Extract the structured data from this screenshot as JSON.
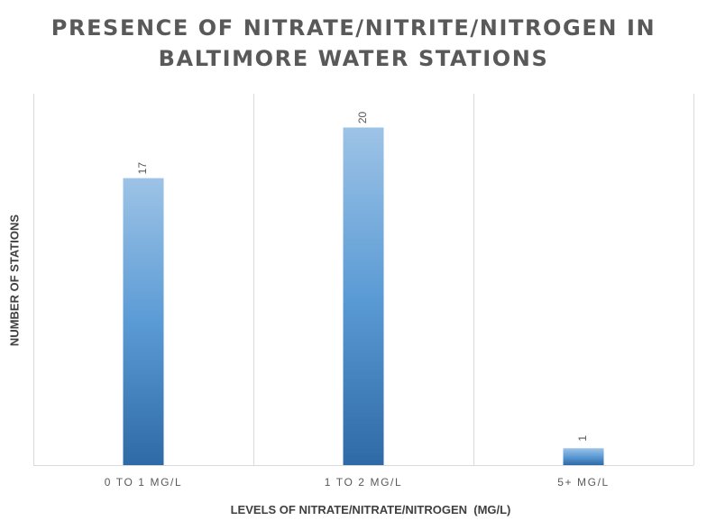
{
  "title_lines": [
    "PRESENCE OF NITRATE/NITRITE/NITROGEN IN",
    "BALTIMORE WATER STATIONS"
  ],
  "chart_data": {
    "type": "bar",
    "title": "PRESENCE OF NITRATE/NITRITE/NITROGEN IN BALTIMORE WATER STATIONS",
    "categories": [
      "0 TO 1 MG/L",
      "1 TO 2 MG/L",
      "5+ MG/L"
    ],
    "values": [
      17,
      20,
      1
    ],
    "data_labels": [
      "17",
      "20",
      "1"
    ],
    "xlabel": "LEVELS OF NITRATE/NITRATE/NITROGEN  (MG/L)",
    "ylabel": "NUMBER OF STATIONS",
    "ylim": [
      0,
      22
    ],
    "grid": "vertical category separators",
    "legend": "none",
    "colors": {
      "bar_top": "#9dc3e6",
      "bar_mid": "#5b9bd5",
      "bar_bottom": "#2e6aa6",
      "grid": "#d9d9d9",
      "text": "#595959"
    }
  }
}
